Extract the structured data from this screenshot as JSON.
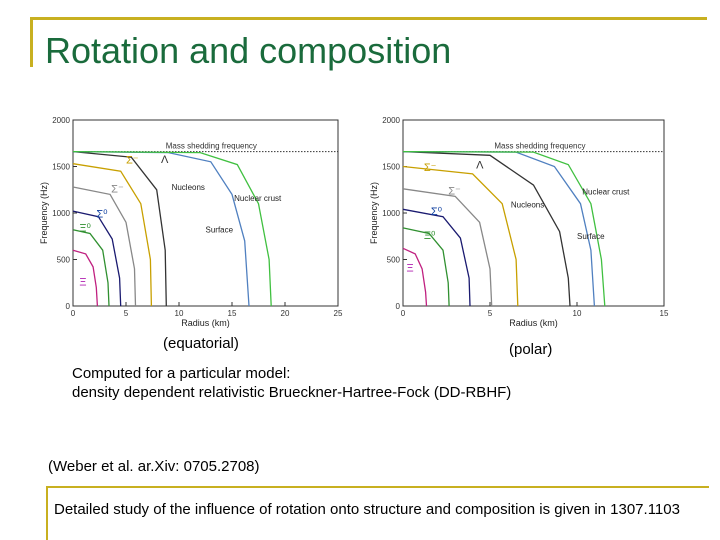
{
  "slide": {
    "title": "Rotation and composition",
    "caption_left": "(equatorial)",
    "caption_right": "(polar)",
    "computed_line1": "Computed for a particular model:",
    "computed_line2": "density dependent relativistic Brueckner-Hartree-Fock (DD-RBHF)",
    "reference": "(Weber et al. ar.Xiv: 0705.2708)",
    "footer": "Detailed study of the influence of rotation onto structure and composition is given in 1307.1103"
  },
  "colors": {
    "title": "#1a6b3c",
    "accent": "#c8b020"
  },
  "chart_data": [
    {
      "type": "line",
      "view": "equatorial",
      "xlabel": "Radius (km)",
      "ylabel": "Frequency (Hz)",
      "xlim": [
        0,
        25
      ],
      "ylim": [
        0,
        2000
      ],
      "xticks": [
        0,
        5,
        10,
        15,
        20,
        25
      ],
      "yticks": [
        0,
        500,
        1000,
        1500,
        2000
      ],
      "mass_shedding_label": "Mass shedding frequency",
      "mass_shedding_y": 1660,
      "annotations": [
        {
          "text": "Nucleons",
          "x": 9.3,
          "y": 1250
        },
        {
          "text": "Nuclear crust",
          "x": 15.2,
          "y": 1130
        },
        {
          "text": "Surface",
          "x": 12.5,
          "y": 790
        }
      ],
      "greek": [
        {
          "sym": "Σ⁻",
          "x": 5.0,
          "y": 1530,
          "color": "#c8a000"
        },
        {
          "sym": "Λ",
          "x": 8.3,
          "y": 1540,
          "color": "#333333"
        },
        {
          "sym": "Σ⁻",
          "x": 3.6,
          "y": 1220,
          "color": "#888888"
        },
        {
          "sym": "Σ⁰",
          "x": 2.2,
          "y": 950,
          "color": "#1040a0"
        },
        {
          "sym": "Ξ⁰",
          "x": 0.6,
          "y": 800,
          "color": "#309030"
        },
        {
          "sym": "Ξ",
          "x": 0.6,
          "y": 220,
          "color": "#b020b0"
        }
      ],
      "series": [
        {
          "color": "#c02080",
          "points": [
            [
              0,
              600
            ],
            [
              1.2,
              560
            ],
            [
              1.9,
              420
            ],
            [
              2.2,
              200
            ],
            [
              2.3,
              0
            ]
          ]
        },
        {
          "color": "#309030",
          "points": [
            [
              0,
              820
            ],
            [
              1.6,
              780
            ],
            [
              2.8,
              600
            ],
            [
              3.3,
              250
            ],
            [
              3.4,
              0
            ]
          ]
        },
        {
          "color": "#1a1a70",
          "points": [
            [
              0,
              1020
            ],
            [
              2.4,
              960
            ],
            [
              3.7,
              720
            ],
            [
              4.4,
              300
            ],
            [
              4.5,
              0
            ]
          ]
        },
        {
          "color": "#888888",
          "points": [
            [
              0,
              1280
            ],
            [
              3.5,
              1200
            ],
            [
              5.0,
              900
            ],
            [
              5.8,
              400
            ],
            [
              5.9,
              0
            ]
          ]
        },
        {
          "color": "#c8a000",
          "points": [
            [
              0,
              1530
            ],
            [
              4.5,
              1450
            ],
            [
              6.4,
              1100
            ],
            [
              7.3,
              500
            ],
            [
              7.4,
              0
            ]
          ]
        },
        {
          "color": "#333333",
          "points": [
            [
              0,
              1660
            ],
            [
              5.5,
              1600
            ],
            [
              7.9,
              1250
            ],
            [
              8.7,
              600
            ],
            [
              8.8,
              0
            ]
          ]
        },
        {
          "color": "#5080c0",
          "points": [
            [
              0,
              1660
            ],
            [
              9,
              1650
            ],
            [
              13,
              1550
            ],
            [
              15.0,
              1200
            ],
            [
              16.2,
              700
            ],
            [
              16.6,
              0
            ]
          ]
        },
        {
          "color": "#40c040",
          "points": [
            [
              0,
              1660
            ],
            [
              12,
              1650
            ],
            [
              15.5,
              1520
            ],
            [
              17.5,
              1100
            ],
            [
              18.5,
              500
            ],
            [
              18.7,
              0
            ]
          ]
        }
      ]
    },
    {
      "type": "line",
      "view": "polar",
      "xlabel": "Radius (km)",
      "ylabel": "Frequency (Hz)",
      "xlim": [
        0,
        15
      ],
      "ylim": [
        0,
        2000
      ],
      "xticks": [
        0,
        5,
        10,
        15
      ],
      "yticks": [
        0,
        500,
        1000,
        1500,
        2000
      ],
      "mass_shedding_label": "Mass shedding frequency",
      "mass_shedding_y": 1660,
      "annotations": [
        {
          "text": "Nucleons",
          "x": 6.2,
          "y": 1060
        },
        {
          "text": "Nuclear crust",
          "x": 10.3,
          "y": 1200
        },
        {
          "text": "Surface",
          "x": 10.0,
          "y": 720
        }
      ],
      "greek": [
        {
          "sym": "Σ⁻",
          "x": 1.2,
          "y": 1450,
          "color": "#c8a000"
        },
        {
          "sym": "Λ",
          "x": 4.2,
          "y": 1480,
          "color": "#333333"
        },
        {
          "sym": "Σ⁻",
          "x": 2.6,
          "y": 1200,
          "color": "#888888"
        },
        {
          "sym": "Σ⁰",
          "x": 1.6,
          "y": 980,
          "color": "#1040a0"
        },
        {
          "sym": "Ξ⁰",
          "x": 1.2,
          "y": 720,
          "color": "#309030"
        },
        {
          "sym": "Ξ",
          "x": 0.2,
          "y": 370,
          "color": "#b020b0"
        }
      ],
      "series": [
        {
          "color": "#c02080",
          "points": [
            [
              0,
              620
            ],
            [
              0.7,
              560
            ],
            [
              1.1,
              400
            ],
            [
              1.3,
              150
            ],
            [
              1.35,
              0
            ]
          ]
        },
        {
          "color": "#309030",
          "points": [
            [
              0,
              840
            ],
            [
              1.5,
              780
            ],
            [
              2.3,
              600
            ],
            [
              2.6,
              250
            ],
            [
              2.65,
              0
            ]
          ]
        },
        {
          "color": "#1a1a70",
          "points": [
            [
              0,
              1040
            ],
            [
              2.3,
              960
            ],
            [
              3.3,
              730
            ],
            [
              3.8,
              300
            ],
            [
              3.85,
              0
            ]
          ]
        },
        {
          "color": "#888888",
          "points": [
            [
              0,
              1260
            ],
            [
              3.0,
              1180
            ],
            [
              4.4,
              900
            ],
            [
              5.0,
              400
            ],
            [
              5.1,
              0
            ]
          ]
        },
        {
          "color": "#c8a000",
          "points": [
            [
              0,
              1500
            ],
            [
              4.0,
              1420
            ],
            [
              5.7,
              1100
            ],
            [
              6.5,
              500
            ],
            [
              6.6,
              0
            ]
          ]
        },
        {
          "color": "#333333",
          "points": [
            [
              0,
              1660
            ],
            [
              5.0,
              1620
            ],
            [
              7.5,
              1300
            ],
            [
              9.0,
              800
            ],
            [
              9.5,
              300
            ],
            [
              9.6,
              0
            ]
          ]
        },
        {
          "color": "#5080c0",
          "points": [
            [
              0,
              1660
            ],
            [
              6.5,
              1655
            ],
            [
              8.7,
              1500
            ],
            [
              10.2,
              1100
            ],
            [
              10.8,
              600
            ],
            [
              11.0,
              0
            ]
          ]
        },
        {
          "color": "#40c040",
          "points": [
            [
              0,
              1660
            ],
            [
              7.5,
              1655
            ],
            [
              9.5,
              1520
            ],
            [
              10.8,
              1100
            ],
            [
              11.4,
              500
            ],
            [
              11.6,
              0
            ]
          ]
        }
      ]
    }
  ]
}
